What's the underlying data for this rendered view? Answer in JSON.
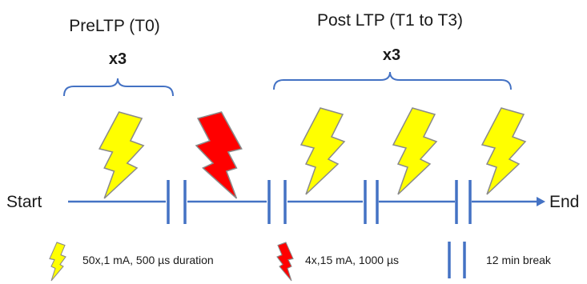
{
  "groups": {
    "pre": {
      "title": "PreLTP (T0)",
      "multiplier": "x3"
    },
    "post": {
      "title": "Post LTP (T1 to T3)",
      "multiplier": "x3"
    }
  },
  "timeline": {
    "start_label": "Start",
    "end_label": "End"
  },
  "legend": {
    "yellow_stim": "50x,1 mA, 500 µs duration",
    "red_stim": "4x,15 mA, 1000 µs",
    "break": "12 min break"
  },
  "colors": {
    "line": "#4472c4",
    "yellow_bolt": "#ffff00",
    "red_bolt": "#ff0000",
    "bolt_outline": "#8a8a8a"
  }
}
